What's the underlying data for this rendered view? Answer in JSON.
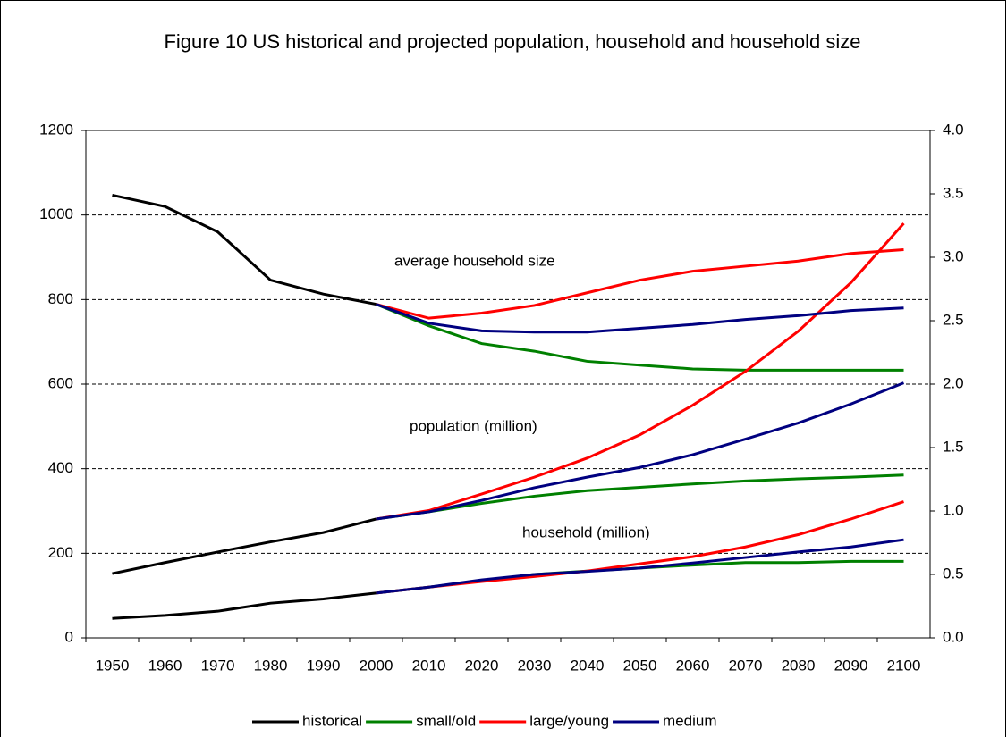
{
  "chart_data": {
    "type": "line",
    "title": "Figure 10 US historical and projected population, household and household size",
    "annotations": [
      "average household size",
      "population (million)",
      "household (million)"
    ],
    "categories": [
      "1950",
      "1960",
      "1970",
      "1980",
      "1990",
      "2000",
      "2010",
      "2020",
      "2030",
      "2040",
      "2050",
      "2060",
      "2070",
      "2080",
      "2090",
      "2100"
    ],
    "ylim": [
      0,
      1200
    ],
    "yticks": [
      0,
      200,
      400,
      600,
      800,
      1000,
      1200
    ],
    "y2lim": [
      0,
      4
    ],
    "y2ticks": [
      {
        "value": 0,
        "label": "0.0"
      },
      0.5,
      {
        "value": 1,
        "label": "1.0"
      },
      1.5,
      {
        "value": 2,
        "label": "2.0"
      },
      2.5,
      {
        "value": 3,
        "label": "3.0"
      },
      3.5,
      {
        "value": 4,
        "label": "4.0"
      }
    ],
    "grid": true,
    "legend": "bottom",
    "series": [
      {
        "name": "historical",
        "color": "#000000",
        "values": [
          152,
          178,
          203,
          227,
          249,
          281,
          null,
          null,
          null,
          null,
          null,
          null,
          null,
          null,
          null,
          null
        ]
      },
      {
        "name": "historical",
        "color": "#000000",
        "values": [
          46,
          53,
          63,
          82,
          92,
          106,
          null,
          null,
          null,
          null,
          null,
          null,
          null,
          null,
          null,
          null
        ]
      },
      {
        "name": "historical",
        "color": "#000000",
        "axis": "y2",
        "values": [
          3.49,
          3.4,
          3.2,
          2.82,
          2.71,
          2.63,
          null,
          null,
          null,
          null,
          null,
          null,
          null,
          null,
          null,
          null
        ]
      },
      {
        "name": "small/old",
        "color": "#008000",
        "values": [
          null,
          null,
          null,
          null,
          null,
          281,
          298,
          318,
          335,
          348,
          356,
          364,
          371,
          376,
          380,
          385
        ]
      },
      {
        "name": "small/old",
        "color": "#008000",
        "values": [
          null,
          null,
          null,
          null,
          null,
          106,
          120,
          135,
          150,
          158,
          165,
          172,
          178,
          178,
          181,
          181
        ]
      },
      {
        "name": "small/old",
        "color": "#008000",
        "axis": "y2",
        "values": [
          null,
          null,
          null,
          null,
          null,
          2.63,
          2.46,
          2.32,
          2.26,
          2.18,
          2.15,
          2.12,
          2.11,
          2.11,
          2.11,
          2.11
        ]
      },
      {
        "name": "large/young",
        "color": "#ff0000",
        "values": [
          null,
          null,
          null,
          null,
          null,
          281,
          301,
          340,
          380,
          425,
          480,
          550,
          630,
          725,
          840,
          980
        ]
      },
      {
        "name": "large/young",
        "color": "#ff0000",
        "values": [
          null,
          null,
          null,
          null,
          null,
          106,
          120,
          133,
          145,
          158,
          175,
          192,
          215,
          244,
          281,
          322
        ]
      },
      {
        "name": "large/young",
        "color": "#ff0000",
        "axis": "y2",
        "values": [
          null,
          null,
          null,
          null,
          null,
          2.63,
          2.52,
          2.56,
          2.62,
          2.72,
          2.82,
          2.89,
          2.93,
          2.97,
          3.03,
          3.06
        ]
      },
      {
        "name": "medium",
        "color": "#000080",
        "values": [
          null,
          null,
          null,
          null,
          null,
          281,
          298,
          325,
          355,
          380,
          403,
          433,
          470,
          508,
          553,
          603
        ]
      },
      {
        "name": "medium",
        "color": "#000080",
        "values": [
          null,
          null,
          null,
          null,
          null,
          106,
          120,
          137,
          150,
          157,
          165,
          177,
          190,
          203,
          215,
          232
        ]
      },
      {
        "name": "medium",
        "color": "#000080",
        "axis": "y2",
        "values": [
          null,
          null,
          null,
          null,
          null,
          2.63,
          2.48,
          2.42,
          2.41,
          2.41,
          2.44,
          2.47,
          2.51,
          2.54,
          2.58,
          2.6
        ]
      }
    ]
  }
}
